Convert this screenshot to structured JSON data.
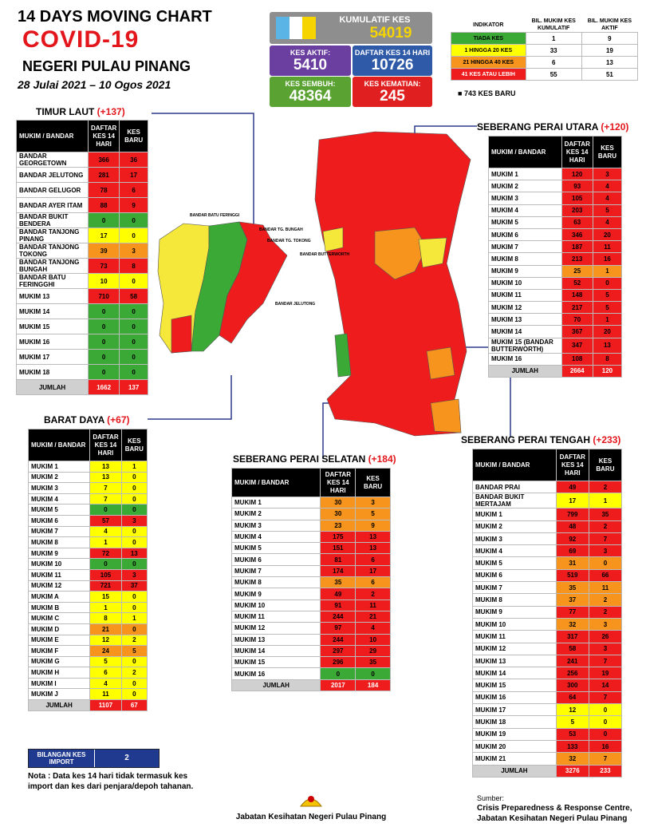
{
  "header": {
    "line1": "14  DAYS MOVING CHART",
    "line2": "COVID-19",
    "line3": "NEGERI PULAU PINANG",
    "dates": "28 Julai 2021 – 10 Ogos 2021"
  },
  "summary": {
    "cumulative": {
      "label": "KUMULATIF KES",
      "value": 54019
    },
    "active": {
      "label": "KES AKTIF:",
      "value": 5410
    },
    "days14": {
      "label": "DAFTAR KES 14 HARI",
      "value": 10726
    },
    "recovered": {
      "label": "KES SEMBUH:",
      "value": 48364
    },
    "deaths": {
      "label": "KES KEMATIAN:",
      "value": 245
    }
  },
  "indicator": {
    "headers": [
      "INDIKATOR",
      "BIL. MUKIM KES KUMULATIF",
      "BIL. MUKIM KES AKTIF"
    ],
    "rows": [
      {
        "label": "TIADA KES",
        "cumulative": 1,
        "active": 9,
        "color": "#3aa935"
      },
      {
        "label": "1 HINGGA 20 KES",
        "cumulative": 33,
        "active": 19,
        "color": "#ffff00"
      },
      {
        "label": "21 HINGGA 40 KES",
        "cumulative": 6,
        "active": 13,
        "color": "#f7941d"
      },
      {
        "label": "41 KES ATAU LEBIH",
        "cumulative": 55,
        "active": 51,
        "color": "#ee1c1c"
      }
    ],
    "new_cases": "743 KES BARU"
  },
  "sections": {
    "timur_laut": {
      "title": "TIMUR LAUT",
      "delta": "(+137)",
      "headers": [
        "MUKIM / BANDAR",
        "DAFTAR KES 14 HARI",
        "KES BARU"
      ],
      "rows": [
        {
          "name": "BANDAR GEORGETOWN",
          "cases": 366,
          "new": 36,
          "color": "#ee1c1c"
        },
        {
          "name": "BANDAR JELUTONG",
          "cases": 281,
          "new": 17,
          "color": "#ee1c1c"
        },
        {
          "name": "BANDAR GELUGOR",
          "cases": 78,
          "new": 6,
          "color": "#ee1c1c"
        },
        {
          "name": "BANDAR AYER ITAM",
          "cases": 88,
          "new": 9,
          "color": "#ee1c1c"
        },
        {
          "name": "BANDAR BUKIT BENDERA",
          "cases": 0,
          "new": 0,
          "color": "#3aa935"
        },
        {
          "name": "BANDAR TANJONG PINANG",
          "cases": 17,
          "new": 0,
          "color": "#ffff00"
        },
        {
          "name": "BANDAR TANJONG TOKONG",
          "cases": 39,
          "new": 3,
          "color": "#f7941d"
        },
        {
          "name": "BANDAR TANJONG BUNGAH",
          "cases": 73,
          "new": 8,
          "color": "#ee1c1c"
        },
        {
          "name": "BANDAR BATU FERINGGHI",
          "cases": 10,
          "new": 0,
          "color": "#ffff00"
        },
        {
          "name": "MUKIM 13",
          "cases": 710,
          "new": 58,
          "color": "#ee1c1c"
        },
        {
          "name": "MUKIM 14",
          "cases": 0,
          "new": 0,
          "color": "#3aa935"
        },
        {
          "name": "MUKIM 15",
          "cases": 0,
          "new": 0,
          "color": "#3aa935"
        },
        {
          "name": "MUKIM 16",
          "cases": 0,
          "new": 0,
          "color": "#3aa935"
        },
        {
          "name": "MUKIM 17",
          "cases": 0,
          "new": 0,
          "color": "#3aa935"
        },
        {
          "name": "MUKIM 18",
          "cases": 0,
          "new": 0,
          "color": "#3aa935"
        }
      ],
      "total": {
        "label": "JUMLAH",
        "cases": 1662,
        "new": 137
      }
    },
    "barat_daya": {
      "title": "BARAT DAYA",
      "delta": "(+67)",
      "headers": [
        "MUKIM / BANDAR",
        "DAFTAR KES 14 HARI",
        "KES BARU"
      ],
      "rows": [
        {
          "name": "MUKIM 1",
          "cases": 13,
          "new": 1,
          "color": "#ffff00"
        },
        {
          "name": "MUKIM 2",
          "cases": 13,
          "new": 0,
          "color": "#ffff00"
        },
        {
          "name": "MUKIM 3",
          "cases": 7,
          "new": 0,
          "color": "#ffff00"
        },
        {
          "name": "MUKIM 4",
          "cases": 7,
          "new": 0,
          "color": "#ffff00"
        },
        {
          "name": "MUKIM 5",
          "cases": 0,
          "new": 0,
          "color": "#3aa935"
        },
        {
          "name": "MUKIM 6",
          "cases": 57,
          "new": 3,
          "color": "#ee1c1c"
        },
        {
          "name": "MUKIM 7",
          "cases": 4,
          "new": 0,
          "color": "#ffff00"
        },
        {
          "name": "MUKIM 8",
          "cases": 1,
          "new": 0,
          "color": "#ffff00"
        },
        {
          "name": "MUKIM 9",
          "cases": 72,
          "new": 13,
          "color": "#ee1c1c"
        },
        {
          "name": "MUKIM 10",
          "cases": 0,
          "new": 0,
          "color": "#3aa935"
        },
        {
          "name": "MUKIM 11",
          "cases": 105,
          "new": 3,
          "color": "#ee1c1c"
        },
        {
          "name": "MUKIM 12",
          "cases": 721,
          "new": 37,
          "color": "#ee1c1c"
        },
        {
          "name": "MUKIM A",
          "cases": 15,
          "new": 0,
          "color": "#ffff00"
        },
        {
          "name": "MUKIM B",
          "cases": 1,
          "new": 0,
          "color": "#ffff00"
        },
        {
          "name": "MUKIM C",
          "cases": 8,
          "new": 1,
          "color": "#ffff00"
        },
        {
          "name": "MUKIM D",
          "cases": 21,
          "new": 0,
          "color": "#f7941d"
        },
        {
          "name": "MUKIM E",
          "cases": 12,
          "new": 2,
          "color": "#ffff00"
        },
        {
          "name": "MUKIM F",
          "cases": 24,
          "new": 5,
          "color": "#f7941d"
        },
        {
          "name": "MUKIM G",
          "cases": 5,
          "new": 0,
          "color": "#ffff00"
        },
        {
          "name": "MUKIM H",
          "cases": 6,
          "new": 2,
          "color": "#ffff00"
        },
        {
          "name": "MUKIM I",
          "cases": 4,
          "new": 0,
          "color": "#ffff00"
        },
        {
          "name": "MUKIM J",
          "cases": 11,
          "new": 0,
          "color": "#ffff00"
        }
      ],
      "total": {
        "label": "JUMLAH",
        "cases": 1107,
        "new": 67
      }
    },
    "spu": {
      "title": "SEBERANG PERAI UTARA",
      "delta": "(+120)",
      "headers": [
        "MUKIM / BANDAR",
        "DAFTAR KES 14 HARI",
        "KES BARU"
      ],
      "rows": [
        {
          "name": "MUKIM 1",
          "cases": 120,
          "new": 3,
          "color": "#ee1c1c"
        },
        {
          "name": "MUKIM 2",
          "cases": 93,
          "new": 4,
          "color": "#ee1c1c"
        },
        {
          "name": "MUKIM 3",
          "cases": 105,
          "new": 4,
          "color": "#ee1c1c"
        },
        {
          "name": "MUKIM 4",
          "cases": 203,
          "new": 5,
          "color": "#ee1c1c"
        },
        {
          "name": "MUKIM 5",
          "cases": 63,
          "new": 4,
          "color": "#ee1c1c"
        },
        {
          "name": "MUKIM 6",
          "cases": 346,
          "new": 20,
          "color": "#ee1c1c"
        },
        {
          "name": "MUKIM 7",
          "cases": 187,
          "new": 11,
          "color": "#ee1c1c"
        },
        {
          "name": "MUKIM 8",
          "cases": 213,
          "new": 16,
          "color": "#ee1c1c"
        },
        {
          "name": "MUKIM 9",
          "cases": 25,
          "new": 1,
          "color": "#f7941d"
        },
        {
          "name": "MUKIM 10",
          "cases": 52,
          "new": 0,
          "color": "#ee1c1c"
        },
        {
          "name": "MUKIM 11",
          "cases": 148,
          "new": 5,
          "color": "#ee1c1c"
        },
        {
          "name": "MUKIM 12",
          "cases": 217,
          "new": 5,
          "color": "#ee1c1c"
        },
        {
          "name": "MUKIM 13",
          "cases": 70,
          "new": 1,
          "color": "#ee1c1c"
        },
        {
          "name": "MUKIM 14",
          "cases": 367,
          "new": 20,
          "color": "#ee1c1c"
        },
        {
          "name": "MUKIM 15 (BANDAR BUTTERWORTH)",
          "cases": 347,
          "new": 13,
          "color": "#ee1c1c"
        },
        {
          "name": "MUKIM 16",
          "cases": 108,
          "new": 8,
          "color": "#ee1c1c"
        }
      ],
      "total": {
        "label": "JUMLAH",
        "cases": 2664,
        "new": 120
      }
    },
    "sps": {
      "title": "SEBERANG PERAI SELATAN",
      "delta": "(+184)",
      "headers": [
        "MUKIM / BANDAR",
        "DAFTAR KES 14 HARI",
        "KES BARU"
      ],
      "rows": [
        {
          "name": "MUKIM 1",
          "cases": 30,
          "new": 3,
          "color": "#f7941d"
        },
        {
          "name": "MUKIM 2",
          "cases": 30,
          "new": 5,
          "color": "#f7941d"
        },
        {
          "name": "MUKIM 3",
          "cases": 23,
          "new": 9,
          "color": "#f7941d"
        },
        {
          "name": "MUKIM 4",
          "cases": 175,
          "new": 13,
          "color": "#ee1c1c"
        },
        {
          "name": "MUKIM 5",
          "cases": 151,
          "new": 13,
          "color": "#ee1c1c"
        },
        {
          "name": "MUKIM 6",
          "cases": 81,
          "new": 6,
          "color": "#ee1c1c"
        },
        {
          "name": "MUKIM 7",
          "cases": 174,
          "new": 17,
          "color": "#ee1c1c"
        },
        {
          "name": "MUKIM 8",
          "cases": 35,
          "new": 6,
          "color": "#f7941d"
        },
        {
          "name": "MUKIM 9",
          "cases": 49,
          "new": 2,
          "color": "#ee1c1c"
        },
        {
          "name": "MUKIM 10",
          "cases": 91,
          "new": 11,
          "color": "#ee1c1c"
        },
        {
          "name": "MUKIM 11",
          "cases": 244,
          "new": 21,
          "color": "#ee1c1c"
        },
        {
          "name": "MUKIM 12",
          "cases": 97,
          "new": 4,
          "color": "#ee1c1c"
        },
        {
          "name": "MUKIM 13",
          "cases": 244,
          "new": 10,
          "color": "#ee1c1c"
        },
        {
          "name": "MUKIM 14",
          "cases": 297,
          "new": 29,
          "color": "#ee1c1c"
        },
        {
          "name": "MUKIM 15",
          "cases": 296,
          "new": 35,
          "color": "#ee1c1c"
        },
        {
          "name": "MUKIM 16",
          "cases": 0,
          "new": 0,
          "color": "#3aa935"
        }
      ],
      "total": {
        "label": "JUMLAH",
        "cases": 2017,
        "new": 184
      }
    },
    "spt": {
      "title": "SEBERANG PERAI TENGAH",
      "delta": "(+233)",
      "headers": [
        "MUKIM / BANDAR",
        "DAFTAR KES 14 HARI",
        "KES BARU"
      ],
      "rows": [
        {
          "name": "BANDAR PRAI",
          "cases": 49,
          "new": 2,
          "color": "#ee1c1c"
        },
        {
          "name": "BANDAR BUKIT MERTAJAM",
          "cases": 17,
          "new": 1,
          "color": "#ffff00"
        },
        {
          "name": "MUKIM 1",
          "cases": 799,
          "new": 35,
          "color": "#ee1c1c"
        },
        {
          "name": "MUKIM 2",
          "cases": 48,
          "new": 2,
          "color": "#ee1c1c"
        },
        {
          "name": "MUKIM 3",
          "cases": 92,
          "new": 7,
          "color": "#ee1c1c"
        },
        {
          "name": "MUKIM 4",
          "cases": 69,
          "new": 3,
          "color": "#ee1c1c"
        },
        {
          "name": "MUKIM 5",
          "cases": 31,
          "new": 0,
          "color": "#f7941d"
        },
        {
          "name": "MUKIM 6",
          "cases": 519,
          "new": 66,
          "color": "#ee1c1c"
        },
        {
          "name": "MUKIM 7",
          "cases": 35,
          "new": 11,
          "color": "#f7941d"
        },
        {
          "name": "MUKIM 8",
          "cases": 37,
          "new": 2,
          "color": "#f7941d"
        },
        {
          "name": "MUKIM 9",
          "cases": 77,
          "new": 2,
          "color": "#ee1c1c"
        },
        {
          "name": "MUKIM 10",
          "cases": 32,
          "new": 3,
          "color": "#f7941d"
        },
        {
          "name": "MUKIM 11",
          "cases": 317,
          "new": 26,
          "color": "#ee1c1c"
        },
        {
          "name": "MUKIM 12",
          "cases": 58,
          "new": 3,
          "color": "#ee1c1c"
        },
        {
          "name": "MUKIM 13",
          "cases": 241,
          "new": 7,
          "color": "#ee1c1c"
        },
        {
          "name": "MUKIM 14",
          "cases": 256,
          "new": 19,
          "color": "#ee1c1c"
        },
        {
          "name": "MUKIM 15",
          "cases": 300,
          "new": 14,
          "color": "#ee1c1c"
        },
        {
          "name": "MUKIM 16",
          "cases": 64,
          "new": 7,
          "color": "#ee1c1c"
        },
        {
          "name": "MUKIM 17",
          "cases": 12,
          "new": 0,
          "color": "#ffff00"
        },
        {
          "name": "MUKIM 18",
          "cases": 5,
          "new": 0,
          "color": "#ffff00"
        },
        {
          "name": "MUKIM 19",
          "cases": 53,
          "new": 0,
          "color": "#ee1c1c"
        },
        {
          "name": "MUKIM 20",
          "cases": 133,
          "new": 16,
          "color": "#ee1c1c"
        },
        {
          "name": "MUKIM 21",
          "cases": 32,
          "new": 7,
          "color": "#f7941d"
        }
      ],
      "total": {
        "label": "JUMLAH",
        "cases": 3276,
        "new": 233
      }
    }
  },
  "map_labels": [
    "BANDAR BATU FERINGGI",
    "BANDAR TG. BUNGAH",
    "BANDAR TG. TOKONG",
    "BANDAR BUTTERWORTH",
    "BANDAR JELUTONG"
  ],
  "import": {
    "label": "BILANGAN KES IMPORT",
    "value": 2
  },
  "note": "Nota : Data kes 14 hari tidak termasuk kes import dan kes dari penjara/depoh tahanan.",
  "footer": {
    "agency": "Jabatan Kesihatan Negeri Pulau Pinang",
    "source_label": "Sumber:",
    "source1": "Crisis Preparedness & Response Centre,",
    "source2": "Jabatan Kesihatan Negeri Pulau Pinang"
  }
}
